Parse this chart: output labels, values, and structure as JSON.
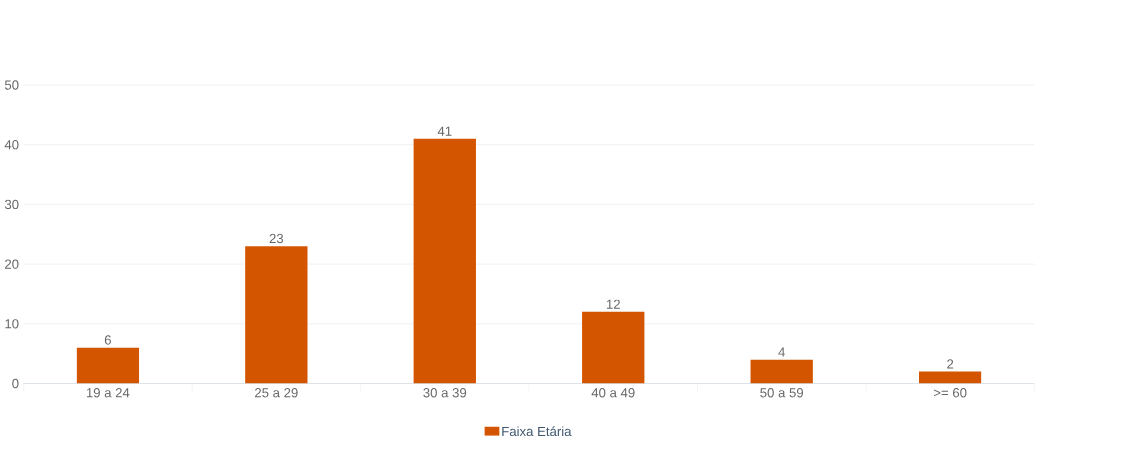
{
  "chart_data": {
    "type": "bar",
    "categories": [
      "19 a 24",
      "25 a 29",
      "30 a 39",
      "40 a 49",
      "50 a 59",
      ">= 60"
    ],
    "series": [
      {
        "name": "Faixa Etária",
        "color": "#d45500",
        "values": [
          6,
          23,
          41,
          12,
          4,
          2
        ]
      }
    ],
    "ylim": [
      0,
      50
    ],
    "yticks": [
      0,
      10,
      20,
      30,
      40,
      50
    ],
    "grid": "y",
    "legend": "bottom",
    "data_labels": true
  }
}
